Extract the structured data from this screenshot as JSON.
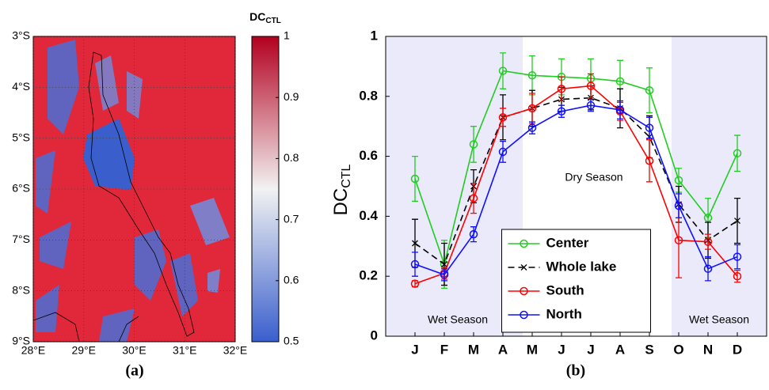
{
  "chart_data": [
    {
      "type": "map",
      "title": "DC",
      "title_sub": "CTL",
      "label": "(a)",
      "xlim": [
        28,
        32
      ],
      "ylim": [
        -9,
        -3
      ],
      "xticks": [
        {
          "value": 28,
          "label": "28°E"
        },
        {
          "value": 29,
          "label": "29°E"
        },
        {
          "value": 30,
          "label": "30°E"
        },
        {
          "value": 31,
          "label": "31°E"
        },
        {
          "value": 32,
          "label": "32°E"
        }
      ],
      "yticks": [
        {
          "value": -3,
          "label": "3°S"
        },
        {
          "value": -4,
          "label": "4°S"
        },
        {
          "value": -5,
          "label": "5°S"
        },
        {
          "value": -6,
          "label": "6°S"
        },
        {
          "value": -7,
          "label": "7°S"
        },
        {
          "value": -8,
          "label": "8°S"
        },
        {
          "value": -9,
          "label": "9°S"
        }
      ],
      "grid": true,
      "colorbar": {
        "lim": [
          0.5,
          1
        ],
        "ticks": [
          0.5,
          0.6,
          0.7,
          0.8,
          0.9,
          1
        ],
        "colors": [
          "#3a5fcd",
          "#f2f2f2",
          "#b2001f"
        ]
      }
    },
    {
      "type": "line",
      "label": "(b)",
      "ylabel": "DC",
      "ylabel_sub": "CTL",
      "categories": [
        "J",
        "F",
        "M",
        "A",
        "M",
        "J",
        "J",
        "A",
        "S",
        "O",
        "N",
        "D"
      ],
      "ylim": [
        0,
        1
      ],
      "yticks": [
        0,
        0.2,
        0.4,
        0.6,
        0.8,
        1
      ],
      "annotations": [
        "Wet Season",
        "Dry Season",
        "Wet Season"
      ],
      "legend": "lower center",
      "series": [
        {
          "name": "Center",
          "color": "#22cc22",
          "marker": "o",
          "values": [
            0.525,
            0.24,
            0.64,
            0.885,
            0.87,
            0.865,
            0.86,
            0.85,
            0.82,
            0.52,
            0.395,
            0.61
          ],
          "errors": [
            0.075,
            0.08,
            0.06,
            0.06,
            0.065,
            0.06,
            0.065,
            0.07,
            0.075,
            0.04,
            0.065,
            0.06
          ]
        },
        {
          "name": "Whole lake",
          "color": "#000000",
          "marker": "x",
          "dash": true,
          "values": [
            0.31,
            0.24,
            0.5,
            0.73,
            0.76,
            0.79,
            0.795,
            0.76,
            0.665,
            0.44,
            0.32,
            0.385
          ],
          "errors": [
            0.08,
            0.07,
            0.055,
            0.075,
            0.06,
            0.04,
            0.04,
            0.065,
            0.07,
            0.06,
            0.06,
            0.075
          ]
        },
        {
          "name": "South",
          "color": "#ff0000",
          "marker": "o",
          "values": [
            0.175,
            0.21,
            0.46,
            0.73,
            0.76,
            0.825,
            0.835,
            0.75,
            0.585,
            0.32,
            0.315,
            0.2
          ],
          "errors": [
            0.01,
            0.02,
            0.05,
            0.03,
            0.05,
            0.04,
            0.04,
            0.03,
            0.07,
            0.125,
            0.025,
            0.02
          ]
        },
        {
          "name": "North",
          "color": "#1010ff",
          "marker": "o",
          "values": [
            0.24,
            0.205,
            0.34,
            0.615,
            0.695,
            0.75,
            0.77,
            0.755,
            0.695,
            0.435,
            0.225,
            0.265
          ],
          "errors": [
            0.04,
            0.02,
            0.025,
            0.035,
            0.02,
            0.02,
            0.02,
            0.03,
            0.035,
            0.04,
            0.04,
            0.04
          ]
        }
      ]
    }
  ]
}
